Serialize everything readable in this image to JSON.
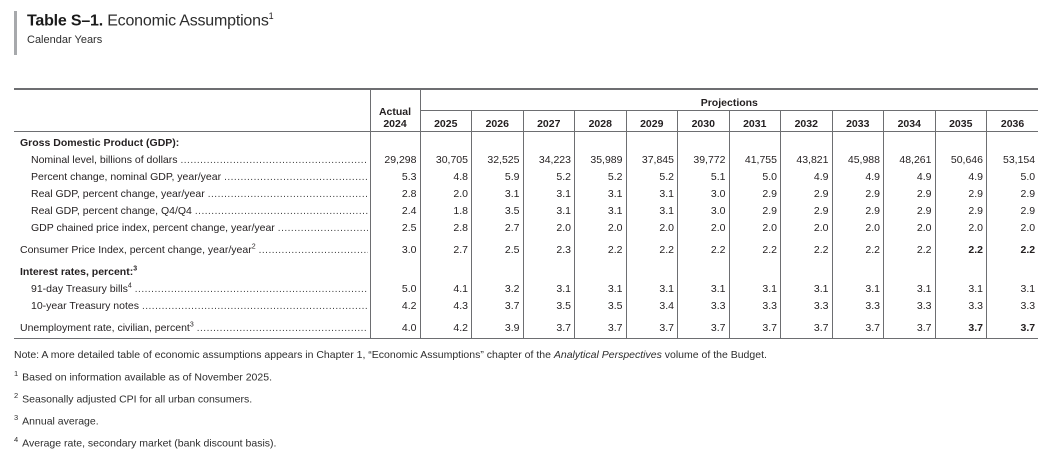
{
  "title": {
    "bold": "Table S–1.",
    "rest": " Economic Assumptions",
    "sup": "1",
    "subtitle": "Calendar Years"
  },
  "table": {
    "actual_line1": "Actual",
    "actual_line2": "2024",
    "projections_label": "Projections",
    "years": [
      "2025",
      "2026",
      "2027",
      "2028",
      "2029",
      "2030",
      "2031",
      "2032",
      "2033",
      "2034",
      "2035",
      "2036"
    ],
    "rows": [
      {
        "label": "Gross Domestic Product (GDP):"
      },
      {
        "label": "Nominal level, billions of dollars",
        "values": [
          "29,298",
          "30,705",
          "32,525",
          "34,223",
          "35,989",
          "37,845",
          "39,772",
          "41,755",
          "43,821",
          "45,988",
          "48,261",
          "50,646",
          "53,154"
        ]
      },
      {
        "label": "Percent change, nominal GDP, year/year",
        "values": [
          "5.3",
          "4.8",
          "5.9",
          "5.2",
          "5.2",
          "5.2",
          "5.1",
          "5.0",
          "4.9",
          "4.9",
          "4.9",
          "4.9",
          "5.0"
        ]
      },
      {
        "label": "Real GDP, percent change, year/year",
        "values": [
          "2.8",
          "2.0",
          "3.1",
          "3.1",
          "3.1",
          "3.1",
          "3.0",
          "2.9",
          "2.9",
          "2.9",
          "2.9",
          "2.9",
          "2.9"
        ]
      },
      {
        "label": "Real GDP, percent change, Q4/Q4",
        "values": [
          "2.4",
          "1.8",
          "3.5",
          "3.1",
          "3.1",
          "3.1",
          "3.0",
          "2.9",
          "2.9",
          "2.9",
          "2.9",
          "2.9",
          "2.9"
        ]
      },
      {
        "label": "GDP chained price index, percent change, year/year",
        "values": [
          "2.5",
          "2.8",
          "2.7",
          "2.0",
          "2.0",
          "2.0",
          "2.0",
          "2.0",
          "2.0",
          "2.0",
          "2.0",
          "2.0",
          "2.0"
        ]
      },
      {
        "label": "Consumer Price Index, percent change, year/year",
        "sup": "2",
        "values": [
          "3.0",
          "2.7",
          "2.5",
          "2.3",
          "2.2",
          "2.2",
          "2.2",
          "2.2",
          "2.2",
          "2.2",
          "2.2",
          "2.2",
          "2.2"
        ]
      },
      {
        "label": "Interest rates, percent:",
        "sup": "3"
      },
      {
        "label": "91-day Treasury bills",
        "sup": "4",
        "values": [
          "5.0",
          "4.1",
          "3.2",
          "3.1",
          "3.1",
          "3.1",
          "3.1",
          "3.1",
          "3.1",
          "3.1",
          "3.1",
          "3.1",
          "3.1"
        ]
      },
      {
        "label": "10-year Treasury notes",
        "values": [
          "4.2",
          "4.3",
          "3.7",
          "3.5",
          "3.5",
          "3.4",
          "3.3",
          "3.3",
          "3.3",
          "3.3",
          "3.3",
          "3.3",
          "3.3"
        ]
      },
      {
        "label": "Unemployment rate, civilian, percent",
        "sup": "3",
        "values": [
          "4.0",
          "4.2",
          "3.9",
          "3.7",
          "3.7",
          "3.7",
          "3.7",
          "3.7",
          "3.7",
          "3.7",
          "3.7",
          "3.7",
          "3.7"
        ]
      }
    ]
  },
  "notes": {
    "note_prefix": "Note: A more detailed table of economic assumptions appears in Chapter 1, “Economic Assumptions” chapter of the ",
    "note_italic": "Analytical Perspectives",
    "note_suffix": " volume of the Budget.",
    "footnotes": [
      {
        "mark": "1",
        "text": "Based on information available as of November 2025."
      },
      {
        "mark": "2",
        "text": "Seasonally adjusted CPI for all urban consumers."
      },
      {
        "mark": "3",
        "text": "Annual average."
      },
      {
        "mark": "4",
        "text": "Average rate, secondary market (bank discount basis)."
      }
    ]
  }
}
